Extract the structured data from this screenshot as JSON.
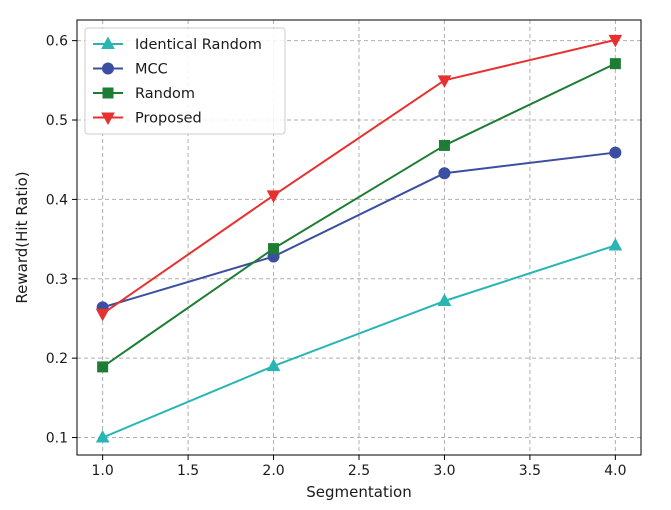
{
  "chart_data": {
    "type": "line",
    "title": "",
    "xlabel": "Segmentation",
    "ylabel": "Reward(Hit Ratio)",
    "x": [
      1.0,
      2.0,
      3.0,
      4.0
    ],
    "xlim": [
      0.85,
      4.15
    ],
    "ylim": [
      0.078,
      0.626
    ],
    "xticks": [
      1.0,
      1.5,
      2.0,
      2.5,
      3.0,
      3.5,
      4.0
    ],
    "xtick_labels": [
      "1.0",
      "1.5",
      "2.0",
      "2.5",
      "3.0",
      "3.5",
      "4.0"
    ],
    "yticks": [
      0.1,
      0.2,
      0.3,
      0.4,
      0.5,
      0.6
    ],
    "ytick_labels": [
      "0.1",
      "0.2",
      "0.3",
      "0.4",
      "0.5",
      "0.6"
    ],
    "grid": true,
    "legend_position": "top-left",
    "series": [
      {
        "name": "Identical Random",
        "color": "#2ab5b5",
        "marker": "triangle-up",
        "values": [
          0.1,
          0.19,
          0.272,
          0.342
        ]
      },
      {
        "name": "MCC",
        "color": "#3b4fa0",
        "marker": "circle",
        "values": [
          0.264,
          0.328,
          0.433,
          0.459
        ]
      },
      {
        "name": "Random",
        "color": "#1e7d35",
        "marker": "square",
        "values": [
          0.189,
          0.338,
          0.468,
          0.571
        ]
      },
      {
        "name": "Proposed",
        "color": "#e8302f",
        "marker": "triangle-down",
        "values": [
          0.256,
          0.405,
          0.55,
          0.601
        ]
      }
    ]
  }
}
